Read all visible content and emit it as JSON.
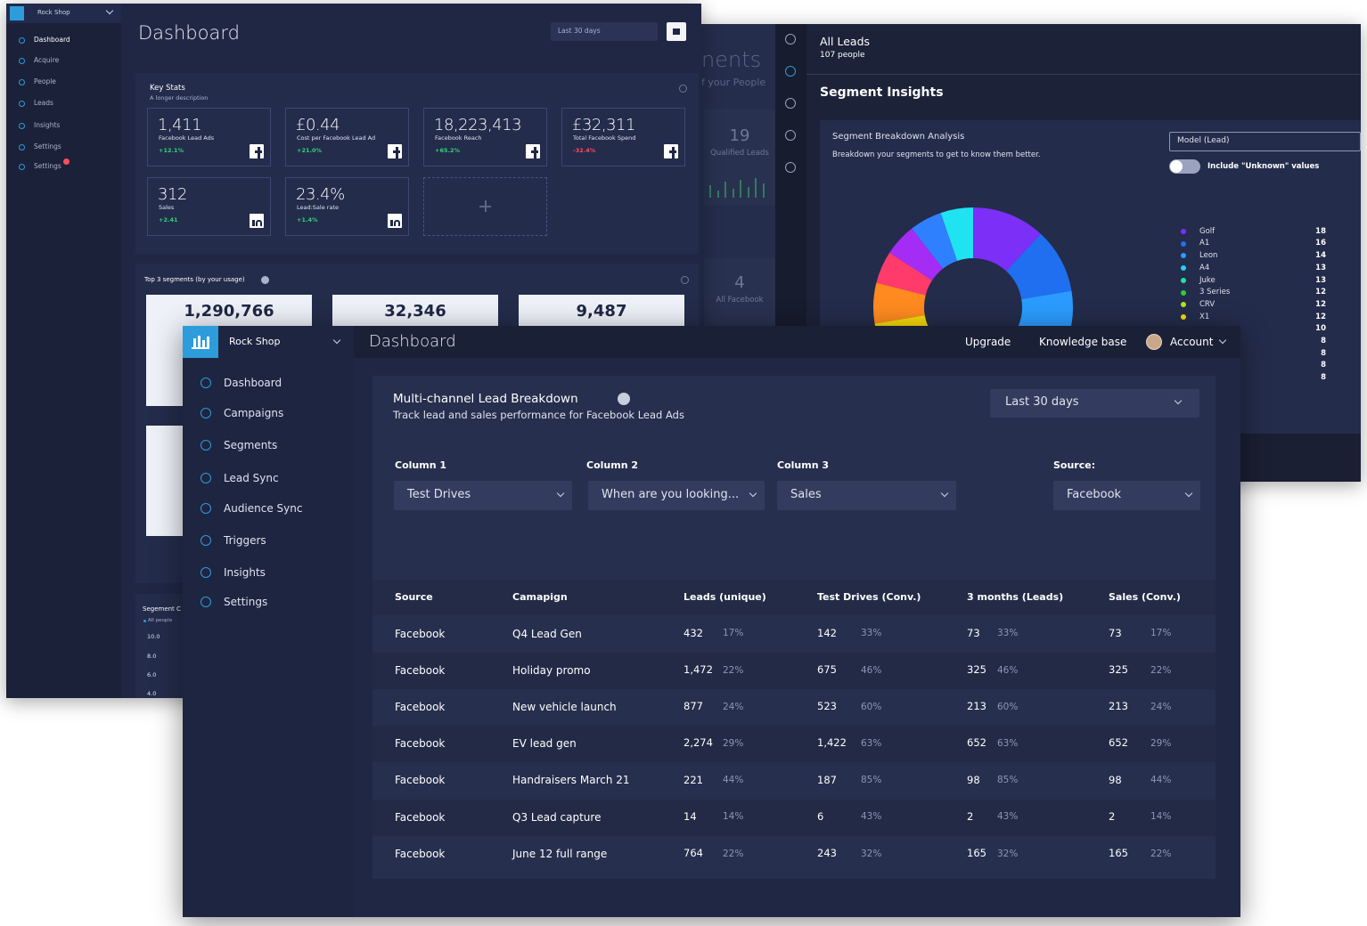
{
  "back_dashboard": {
    "brand": "Rock Shop",
    "nav": [
      "Dashboard",
      "Acquire",
      "People",
      "Leads",
      "Insights",
      "Settings",
      "Settings"
    ],
    "title": "Dashboard",
    "date_range": "Last 30 days",
    "key_stats": {
      "title": "Key Stats",
      "description": "A longer description",
      "cards": [
        {
          "value": "1,411",
          "label": "Facebook Lead Ads",
          "change": "+12.1%",
          "trend": "up",
          "network": "facebook"
        },
        {
          "value": "£0.44",
          "label": "Cost per Facebook Lead Ad",
          "change": "+21.0%",
          "trend": "up",
          "network": "facebook"
        },
        {
          "value": "18,223,413",
          "label": "Facebook Reach",
          "change": "+65.2%",
          "trend": "up",
          "network": "facebook"
        },
        {
          "value": "£32,311",
          "label": "Total Facebook Spend",
          "change": "-32.4%",
          "trend": "down",
          "network": "facebook"
        },
        {
          "value": "312",
          "label": "Sales",
          "change": "+2.41",
          "trend": "up",
          "network": "linkedin"
        },
        {
          "value": "23.4%",
          "label": "Lead:Sale rate",
          "change": "+1.4%",
          "trend": "up",
          "network": "linkedin"
        }
      ]
    },
    "top_segments": {
      "title": "Top 3 segments (by your usage)",
      "values": [
        "1,290,766",
        "32,346",
        "9,487"
      ]
    },
    "segment_chart": {
      "title": "Segement C",
      "subtitle": "All people",
      "yticks": [
        "10.0",
        "8.0",
        "6.0",
        "4.0"
      ]
    }
  },
  "segments_page": {
    "title": "nents",
    "subtitle": "f your People",
    "cards": [
      {
        "value": "19",
        "label": "Qualified Leads"
      },
      {
        "value": "4",
        "label": "All Facebook"
      }
    ]
  },
  "insights": {
    "title": "All Leads",
    "count": "107 people",
    "heading": "Segment Insights",
    "panel_title": "Segment Breakdown Analysis",
    "panel_description": "Breakdown your segments to get to know them better.",
    "model": "Model (Lead)",
    "toggle_label": "Include \"Unknown\" values",
    "toggle_on": false,
    "breakdown": [
      {
        "name": "Golf",
        "value": 18,
        "color": "#7b2ff7"
      },
      {
        "name": "A1",
        "value": 16,
        "color": "#1f6ff0"
      },
      {
        "name": "Leon",
        "value": 14,
        "color": "#2b9bff"
      },
      {
        "name": "A4",
        "value": 13,
        "color": "#22d3ee"
      },
      {
        "name": "Juke",
        "value": 13,
        "color": "#25e0a8"
      },
      {
        "name": "3 Series",
        "value": 12,
        "color": "#2ecc40"
      },
      {
        "name": "CRV",
        "value": 12,
        "color": "#b8e01c"
      },
      {
        "name": "X1",
        "value": 12,
        "color": "#f7d80a"
      },
      {
        "name": null,
        "value": 10,
        "color": "#ff8a1f"
      },
      {
        "name": null,
        "value": 8,
        "color": "#ff3b6b"
      },
      {
        "name": null,
        "value": 8,
        "color": "#a42cf5"
      },
      {
        "name": null,
        "value": 8,
        "color": "#2f80ff"
      },
      {
        "name": null,
        "value": 8,
        "color": "#20e3f2"
      }
    ]
  },
  "app": {
    "brand": "Rock Shop",
    "title": "Dashboard",
    "top_nav": [
      "Upgrade",
      "Knowledge base",
      "Account"
    ],
    "sidebar": [
      "Dashboard",
      "Campaigns",
      "Segments",
      "Lead Sync",
      "Audience Sync",
      "Triggers",
      "Insights",
      "Settings"
    ],
    "breakdown": {
      "title": "Multi-channel Lead Breakdown",
      "description": "Track lead and sales performance for Facebook Lead Ads",
      "date_range": "Last 30 days",
      "filters": [
        {
          "label": "Column 1",
          "value": "Test Drives"
        },
        {
          "label": "Column 2",
          "value": "When are you looking..."
        },
        {
          "label": "Column 3",
          "value": "Sales"
        },
        {
          "label": "Source:",
          "value": "Facebook"
        }
      ],
      "table": {
        "headers": [
          "Source",
          "Camapign",
          "Leads (unique)",
          "Test Drives (Conv.)",
          "3 months (Leads)",
          "Sales (Conv.)"
        ],
        "rows": [
          [
            "Facebook",
            "Q4 Lead Gen",
            "432",
            "17%",
            "142",
            "33%",
            "73",
            "33%",
            "73",
            "17%"
          ],
          [
            "Facebook",
            "Holiday promo",
            "1,472",
            "22%",
            "675",
            "46%",
            "325",
            "46%",
            "325",
            "22%"
          ],
          [
            "Facebook",
            "New vehicle launch",
            "877",
            "24%",
            "523",
            "60%",
            "213",
            "60%",
            "213",
            "24%"
          ],
          [
            "Facebook",
            "EV lead gen",
            "2,274",
            "29%",
            "1,422",
            "63%",
            "652",
            "63%",
            "652",
            "29%"
          ],
          [
            "Facebook",
            "Handraisers March 21",
            "221",
            "44%",
            "187",
            "85%",
            "98",
            "85%",
            "98",
            "44%"
          ],
          [
            "Facebook",
            "Q3 Lead capture",
            "14",
            "14%",
            "6",
            "43%",
            "2",
            "43%",
            "2",
            "14%"
          ],
          [
            "Facebook",
            "June 12 full range",
            "764",
            "22%",
            "243",
            "32%",
            "165",
            "32%",
            "165",
            "22%"
          ]
        ]
      }
    }
  }
}
